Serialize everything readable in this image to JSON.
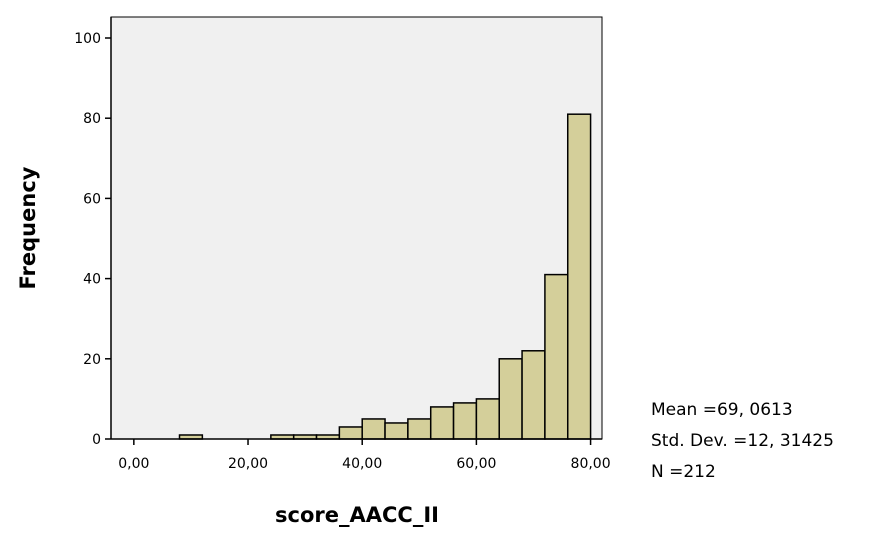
{
  "chart_data": {
    "type": "bar",
    "xlabel": "score_AACC_II",
    "ylabel": "Frequency",
    "xlim": [
      -4,
      82
    ],
    "ylim": [
      0,
      100
    ],
    "x_ticks": [
      {
        "value": 0,
        "label": "0,00"
      },
      {
        "value": 20,
        "label": "20,00"
      },
      {
        "value": 40,
        "label": "40,00"
      },
      {
        "value": 60,
        "label": "60,00"
      },
      {
        "value": 80,
        "label": "80,00"
      }
    ],
    "y_ticks": [
      {
        "value": 0,
        "label": "0"
      },
      {
        "value": 20,
        "label": "20"
      },
      {
        "value": 40,
        "label": "40"
      },
      {
        "value": 60,
        "label": "60"
      },
      {
        "value": 80,
        "label": "80"
      },
      {
        "value": 100,
        "label": "100"
      }
    ],
    "bins": [
      {
        "start": 8,
        "end": 12,
        "value": 1
      },
      {
        "start": 24,
        "end": 28,
        "value": 1
      },
      {
        "start": 28,
        "end": 32,
        "value": 1
      },
      {
        "start": 32,
        "end": 36,
        "value": 1
      },
      {
        "start": 36,
        "end": 40,
        "value": 3
      },
      {
        "start": 40,
        "end": 44,
        "value": 5
      },
      {
        "start": 44,
        "end": 48,
        "value": 4
      },
      {
        "start": 48,
        "end": 52,
        "value": 5
      },
      {
        "start": 52,
        "end": 56,
        "value": 8
      },
      {
        "start": 56,
        "end": 60,
        "value": 9
      },
      {
        "start": 60,
        "end": 64,
        "value": 10
      },
      {
        "start": 64,
        "end": 68,
        "value": 20
      },
      {
        "start": 68,
        "end": 72,
        "value": 22
      },
      {
        "start": 72,
        "end": 76,
        "value": 41
      },
      {
        "start": 76,
        "end": 80,
        "value": 81
      }
    ],
    "grid": false,
    "legend": "none"
  },
  "stats": {
    "mean": "Mean =69, 0613",
    "std_dev": "Std. Dev. =12, 31425",
    "n": "N =212"
  },
  "colors": {
    "plot_background": "#f0f0f0",
    "bar_fill": "#d4cf9a",
    "bar_stroke": "#000000"
  }
}
